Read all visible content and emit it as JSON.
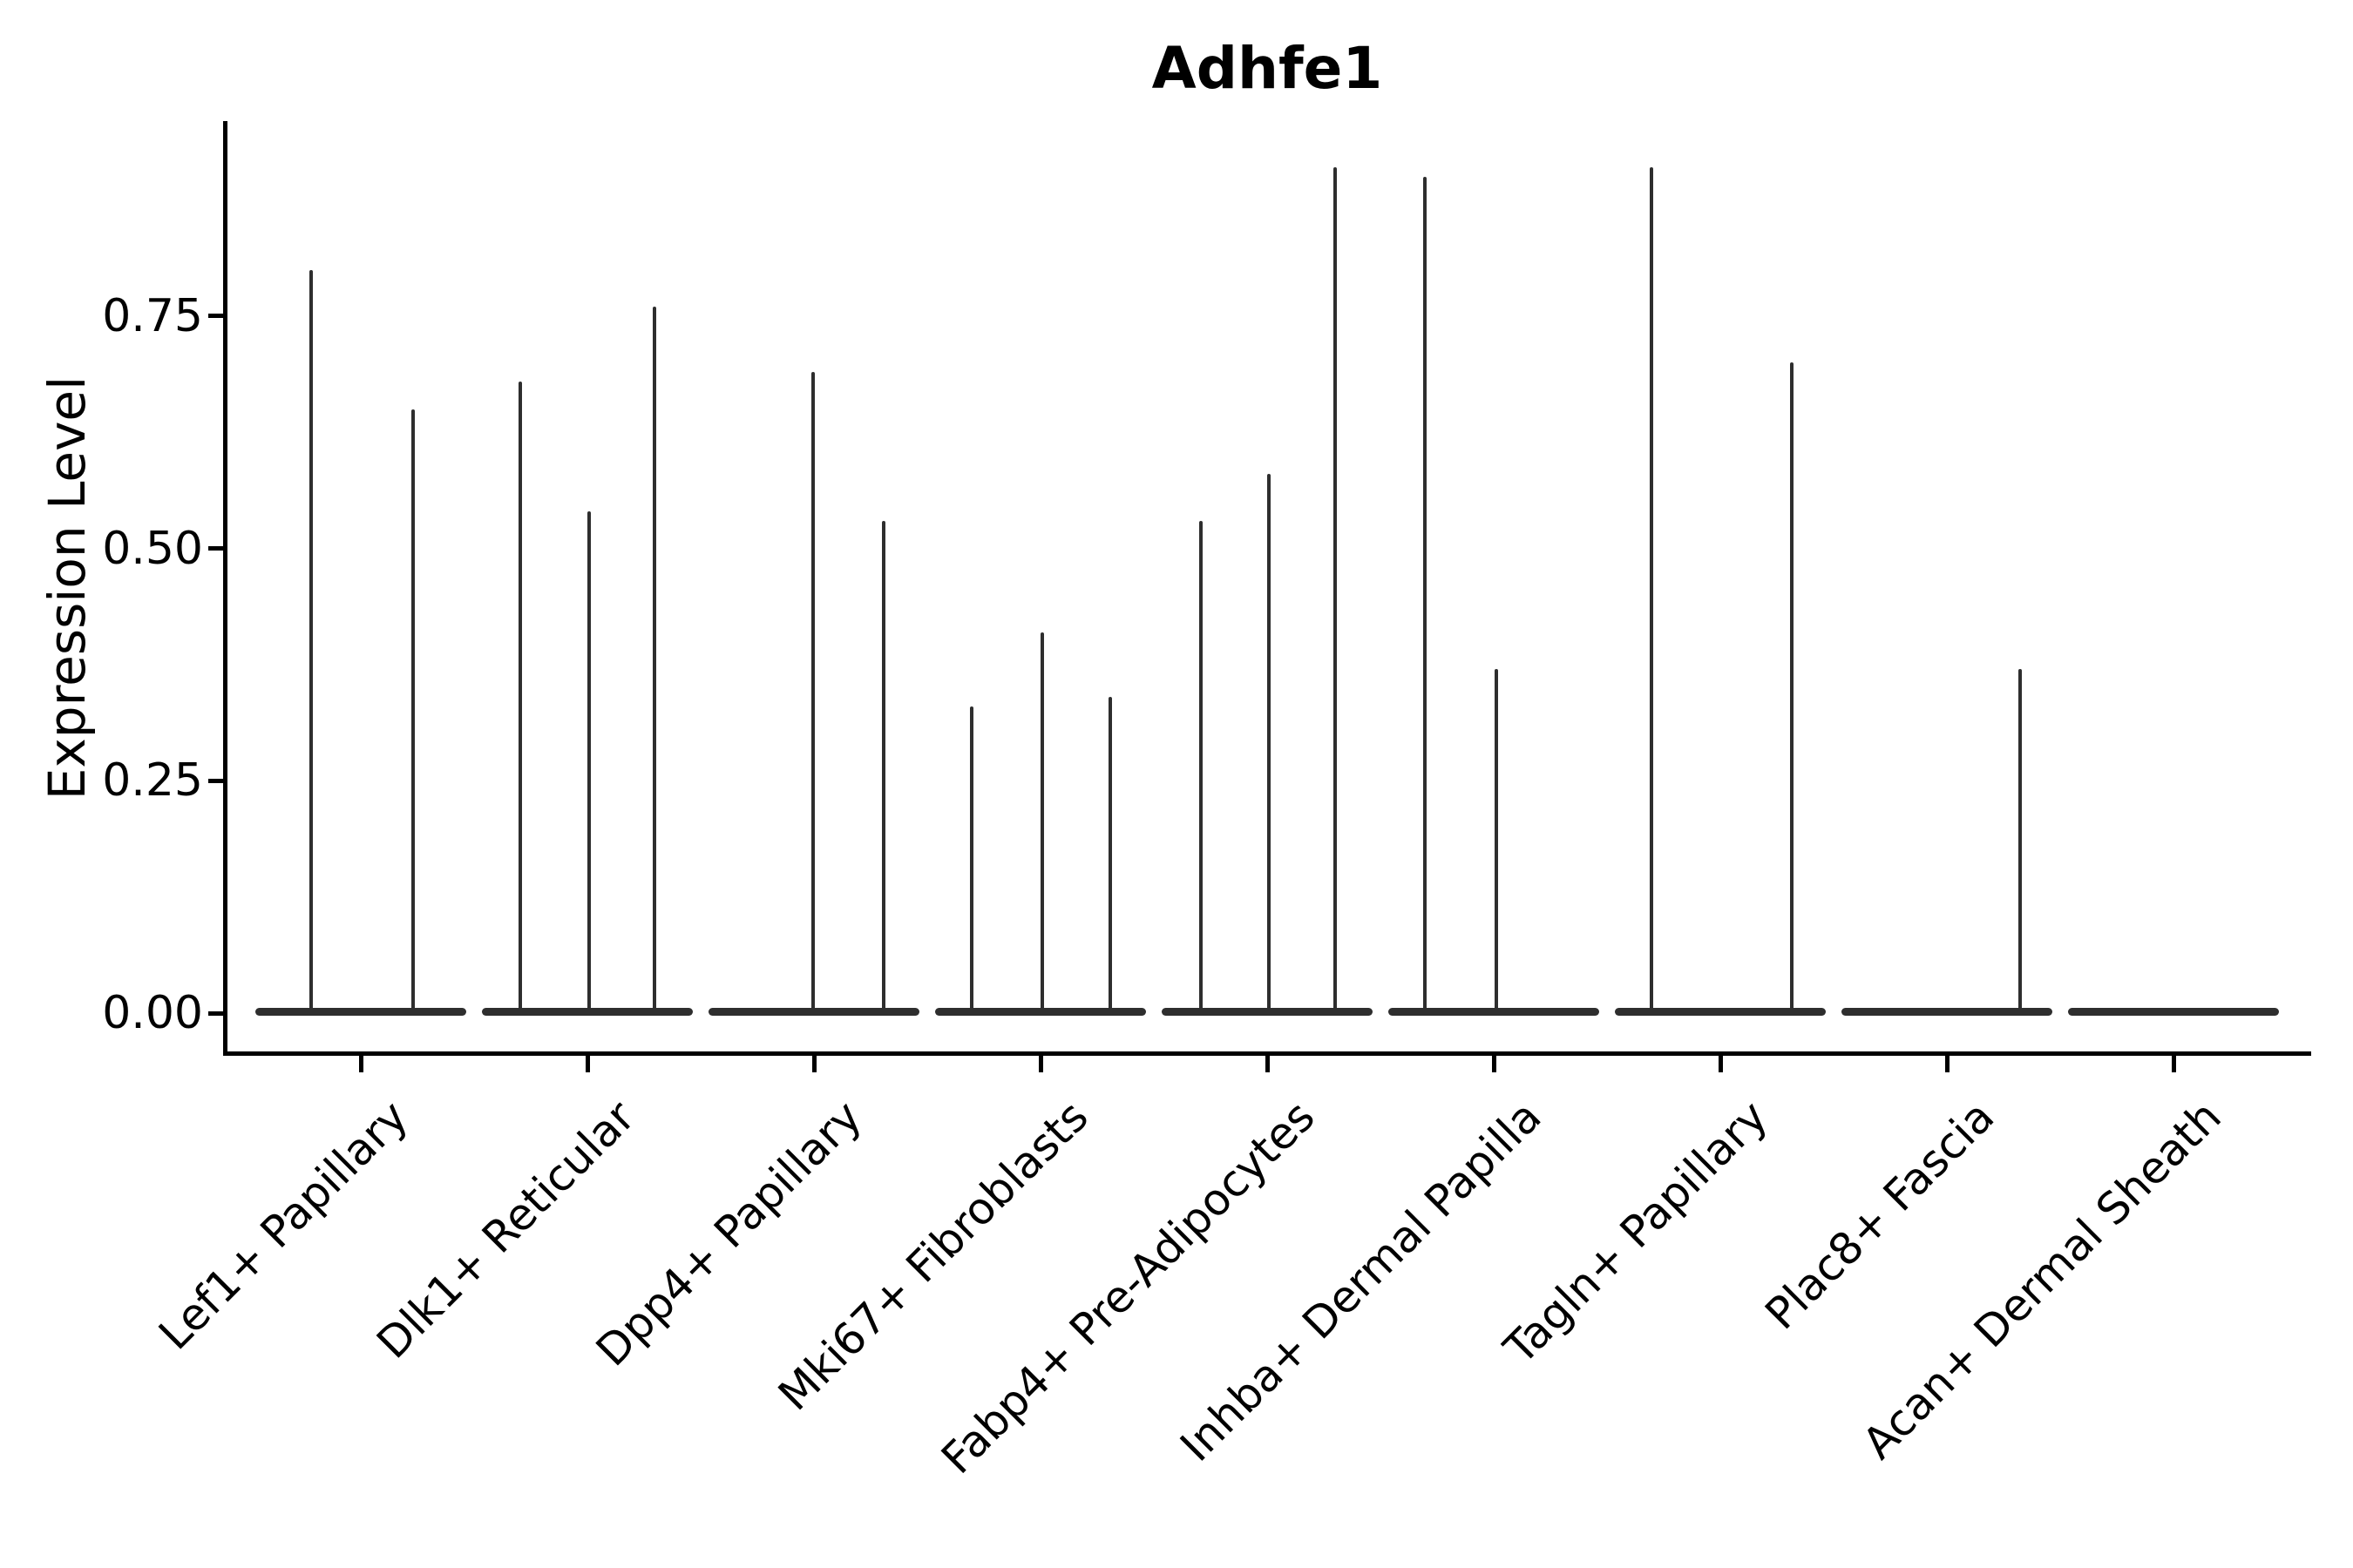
{
  "title": "Adhfe1",
  "axes": {
    "y_label": "Expression Level",
    "y_tick_labels": [
      "0.00",
      "0.25",
      "0.50",
      "0.75"
    ]
  },
  "chart_data": {
    "type": "violin",
    "title": "Adhfe1",
    "xlabel": "",
    "ylabel": "Expression Level",
    "ylim": [
      -0.045,
      0.96
    ],
    "yticks": [
      0.0,
      0.25,
      0.5,
      0.75
    ],
    "grid": false,
    "legend": "none",
    "style_note": "sparse single-cell expression violins: flat dense base at 0 with thin spikes at max expression per split group",
    "categories": [
      "Lef1+ Papillary",
      "Dlk1+ Reticular",
      "Dpp4+ Papillary",
      "Mki67+ Fibroblasts",
      "Fabp4+ Pre-Adipocytes",
      "Inhba+ Dermal Papilla",
      "Tagln+ Papillary",
      "Plac8+ Fascia",
      "Acan+ Dermal Sheath"
    ],
    "violins": [
      {
        "category": "Lef1+ Papillary",
        "spikes": [
          {
            "x": 357,
            "value": 0.8
          },
          {
            "x": 474,
            "value": 0.65
          }
        ]
      },
      {
        "category": "Dlk1+ Reticular",
        "spikes": [
          {
            "x": 597,
            "value": 0.68
          },
          {
            "x": 676,
            "value": 0.54
          },
          {
            "x": 751,
            "value": 0.76
          }
        ]
      },
      {
        "category": "Dpp4+ Papillary",
        "spikes": [
          {
            "x": 933,
            "value": 0.69
          },
          {
            "x": 1014,
            "value": 0.53
          }
        ]
      },
      {
        "category": "Mki67+ Fibroblasts",
        "spikes": [
          {
            "x": 1115,
            "value": 0.33
          },
          {
            "x": 1196,
            "value": 0.41
          },
          {
            "x": 1274,
            "value": 0.34
          }
        ]
      },
      {
        "category": "Fabp4+ Pre-Adipocytes",
        "spikes": [
          {
            "x": 1378,
            "value": 0.53
          },
          {
            "x": 1456,
            "value": 0.58
          },
          {
            "x": 1532,
            "value": 0.91
          }
        ]
      },
      {
        "category": "Inhba+ Dermal Papilla",
        "spikes": [
          {
            "x": 1635,
            "value": 0.9
          },
          {
            "x": 1717,
            "value": 0.37
          }
        ]
      },
      {
        "category": "Tagln+ Papillary",
        "spikes": [
          {
            "x": 1895,
            "value": 0.91
          },
          {
            "x": 2056,
            "value": 0.7
          }
        ]
      },
      {
        "category": "Plac8+ Fascia",
        "spikes": [
          {
            "x": 2318,
            "value": 0.37
          }
        ]
      },
      {
        "category": "Acan+ Dermal Sheath",
        "spikes": []
      }
    ],
    "colors": {
      "violin": "#2e2e2e",
      "axis": "#000000",
      "text": "#000000",
      "background": "#ffffff"
    }
  }
}
